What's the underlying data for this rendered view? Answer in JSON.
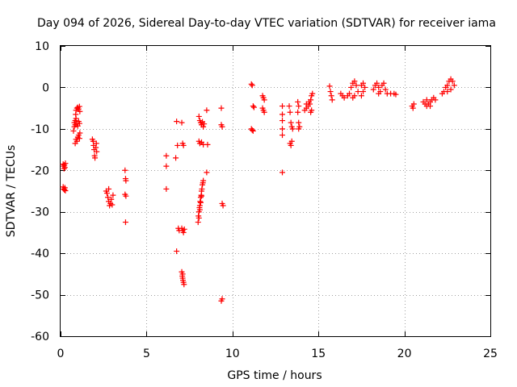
{
  "chart_data": {
    "type": "scatter",
    "title": "Day 094 of 2026, Sidereal Day-to-day VTEC variation (SDTVAR) for receiver iama",
    "xlabel": "GPS time / hours",
    "ylabel": "SDTVAR / TECUs",
    "xlim": [
      0,
      25
    ],
    "ylim": [
      -60,
      10
    ],
    "xticks": [
      "0",
      "5",
      "10",
      "15",
      "20",
      "25"
    ],
    "yticks": [
      "10",
      "0",
      "-10",
      "-20",
      "-30",
      "-40",
      "-50",
      "-60"
    ],
    "grid": true,
    "marker": "+",
    "marker_color": "#ff0000",
    "series": [
      {
        "name": "SDTVAR",
        "points": [
          [
            0.15,
            -18.5
          ],
          [
            0.18,
            -19.0
          ],
          [
            0.2,
            -19.6
          ],
          [
            0.22,
            -18.7
          ],
          [
            0.25,
            -19.3
          ],
          [
            0.28,
            -18.3
          ],
          [
            0.15,
            -24.0
          ],
          [
            0.18,
            -24.5
          ],
          [
            0.22,
            -24.7
          ],
          [
            0.25,
            -24.2
          ],
          [
            0.28,
            -24.9
          ],
          [
            0.75,
            -10.5
          ],
          [
            0.8,
            -9.5
          ],
          [
            0.85,
            -8.0
          ],
          [
            0.88,
            -6.5
          ],
          [
            0.9,
            -5.5
          ],
          [
            0.95,
            -5.0
          ],
          [
            1.0,
            -4.8
          ],
          [
            1.05,
            -5.2
          ],
          [
            1.1,
            -4.6
          ],
          [
            1.12,
            -5.8
          ],
          [
            0.8,
            -8.5
          ],
          [
            0.85,
            -9.0
          ],
          [
            0.9,
            -7.5
          ],
          [
            0.95,
            -8.8
          ],
          [
            1.0,
            -9.3
          ],
          [
            1.05,
            -8.2
          ],
          [
            1.1,
            -8.7
          ],
          [
            0.85,
            -13.5
          ],
          [
            0.9,
            -12.5
          ],
          [
            0.95,
            -13.0
          ],
          [
            1.0,
            -12.0
          ],
          [
            1.05,
            -11.5
          ],
          [
            1.1,
            -12.3
          ],
          [
            1.12,
            -11.0
          ],
          [
            1.85,
            -12.5
          ],
          [
            1.9,
            -13.0
          ],
          [
            1.92,
            -14.0
          ],
          [
            1.95,
            -15.0
          ],
          [
            1.98,
            -16.5
          ],
          [
            2.0,
            -17.0
          ],
          [
            2.05,
            -14.5
          ],
          [
            2.08,
            -13.5
          ],
          [
            2.1,
            -15.5
          ],
          [
            2.65,
            -25.0
          ],
          [
            2.7,
            -25.5
          ],
          [
            2.75,
            -26.5
          ],
          [
            2.8,
            -27.5
          ],
          [
            2.85,
            -28.5
          ],
          [
            2.9,
            -28.0
          ],
          [
            2.95,
            -27.0
          ],
          [
            3.0,
            -28.3
          ],
          [
            3.05,
            -26.0
          ],
          [
            2.8,
            -24.5
          ],
          [
            3.75,
            -20.0
          ],
          [
            3.78,
            -22.0
          ],
          [
            3.8,
            -22.5
          ],
          [
            3.75,
            -25.8
          ],
          [
            3.8,
            -26.2
          ],
          [
            3.78,
            -32.5
          ],
          [
            6.15,
            -16.5
          ],
          [
            6.15,
            -19.0
          ],
          [
            6.15,
            -24.5
          ],
          [
            6.75,
            -8.2
          ],
          [
            6.7,
            -17.0
          ],
          [
            6.8,
            -14.0
          ],
          [
            6.85,
            -34.0
          ],
          [
            6.9,
            -34.5
          ],
          [
            6.75,
            -39.5
          ],
          [
            7.05,
            -8.5
          ],
          [
            7.1,
            -13.5
          ],
          [
            7.15,
            -14.0
          ],
          [
            7.05,
            -34.0
          ],
          [
            7.1,
            -34.5
          ],
          [
            7.15,
            -35.0
          ],
          [
            7.2,
            -34.2
          ],
          [
            7.05,
            -44.5
          ],
          [
            7.08,
            -45.5
          ],
          [
            7.1,
            -46.0
          ],
          [
            7.12,
            -46.5
          ],
          [
            7.15,
            -47.0
          ],
          [
            7.18,
            -47.5
          ],
          [
            7.1,
            -45.0
          ],
          [
            8.05,
            -7.0
          ],
          [
            8.1,
            -8.0
          ],
          [
            8.15,
            -8.5
          ],
          [
            8.2,
            -9.0
          ],
          [
            8.25,
            -8.3
          ],
          [
            8.3,
            -9.5
          ],
          [
            8.35,
            -8.8
          ],
          [
            8.05,
            -13.0
          ],
          [
            8.1,
            -13.5
          ],
          [
            8.2,
            -13.2
          ],
          [
            8.3,
            -13.8
          ],
          [
            8.55,
            -13.8
          ],
          [
            8.0,
            -32.5
          ],
          [
            8.02,
            -31.0
          ],
          [
            8.05,
            -30.0
          ],
          [
            8.08,
            -29.0
          ],
          [
            8.1,
            -28.5
          ],
          [
            8.12,
            -27.5
          ],
          [
            8.15,
            -26.5
          ],
          [
            8.18,
            -26.0
          ],
          [
            8.2,
            -25.0
          ],
          [
            8.22,
            -24.5
          ],
          [
            8.25,
            -23.5
          ],
          [
            8.28,
            -23.0
          ],
          [
            8.3,
            -22.5
          ],
          [
            8.05,
            -31.5
          ],
          [
            8.1,
            -29.5
          ],
          [
            8.15,
            -27.8
          ],
          [
            8.2,
            -26.2
          ],
          [
            8.5,
            -5.5
          ],
          [
            8.5,
            -20.5
          ],
          [
            9.35,
            -5.0
          ],
          [
            9.35,
            -9.0
          ],
          [
            9.4,
            -9.5
          ],
          [
            9.4,
            -28.0
          ],
          [
            9.45,
            -28.5
          ],
          [
            9.35,
            -51.5
          ],
          [
            9.4,
            -51.0
          ],
          [
            11.1,
            0.8
          ],
          [
            11.15,
            0.5
          ],
          [
            11.2,
            -4.5
          ],
          [
            11.25,
            -4.8
          ],
          [
            11.1,
            -10.0
          ],
          [
            11.15,
            -10.3
          ],
          [
            11.2,
            -10.5
          ],
          [
            11.75,
            -2.0
          ],
          [
            11.8,
            -2.5
          ],
          [
            11.85,
            -3.0
          ],
          [
            11.8,
            -5.5
          ],
          [
            11.85,
            -6.0
          ],
          [
            11.75,
            -5.0
          ],
          [
            12.9,
            -4.5
          ],
          [
            12.9,
            -6.5
          ],
          [
            12.9,
            -8.0
          ],
          [
            12.9,
            -11.5
          ],
          [
            12.9,
            -20.5
          ],
          [
            12.9,
            -10.0
          ],
          [
            13.3,
            -4.5
          ],
          [
            13.35,
            -6.0
          ],
          [
            13.4,
            -8.5
          ],
          [
            13.45,
            -9.5
          ],
          [
            13.5,
            -10.0
          ],
          [
            13.35,
            -13.5
          ],
          [
            13.4,
            -14.0
          ],
          [
            13.45,
            -13.0
          ],
          [
            13.8,
            -3.5
          ],
          [
            13.85,
            -4.5
          ],
          [
            13.8,
            -6.0
          ],
          [
            13.85,
            -8.5
          ],
          [
            13.9,
            -9.5
          ],
          [
            13.85,
            -10.0
          ],
          [
            14.2,
            -5.5
          ],
          [
            14.3,
            -5.0
          ],
          [
            14.4,
            -4.5
          ],
          [
            14.5,
            -4.0
          ],
          [
            14.55,
            -3.0
          ],
          [
            14.6,
            -2.0
          ],
          [
            14.65,
            -1.5
          ],
          [
            14.3,
            -4.0
          ],
          [
            14.45,
            -3.5
          ],
          [
            14.6,
            -5.5
          ],
          [
            14.55,
            -6.0
          ],
          [
            15.65,
            0.3
          ],
          [
            15.7,
            -1.0
          ],
          [
            15.75,
            -2.0
          ],
          [
            15.8,
            -3.0
          ],
          [
            16.3,
            -1.5
          ],
          [
            16.4,
            -2.0
          ],
          [
            16.5,
            -2.5
          ],
          [
            16.7,
            -2.0
          ],
          [
            16.8,
            -1.5
          ],
          [
            16.9,
            0.0
          ],
          [
            17.0,
            1.0
          ],
          [
            17.1,
            1.5
          ],
          [
            17.2,
            0.5
          ],
          [
            17.3,
            -1.0
          ],
          [
            17.1,
            -2.0
          ],
          [
            17.0,
            -2.5
          ],
          [
            17.5,
            0.5
          ],
          [
            17.6,
            1.0
          ],
          [
            17.7,
            0.0
          ],
          [
            17.6,
            -1.0
          ],
          [
            17.5,
            -2.0
          ],
          [
            18.2,
            -0.5
          ],
          [
            18.3,
            0.5
          ],
          [
            18.4,
            1.0
          ],
          [
            18.5,
            0.0
          ],
          [
            18.6,
            -1.0
          ],
          [
            18.7,
            0.5
          ],
          [
            18.8,
            1.0
          ],
          [
            18.9,
            -0.5
          ],
          [
            19.0,
            -1.5
          ],
          [
            18.5,
            -1.5
          ],
          [
            19.2,
            -1.5
          ],
          [
            19.4,
            -1.5
          ],
          [
            19.5,
            -1.7
          ],
          [
            20.45,
            -4.5
          ],
          [
            20.5,
            -5.0
          ],
          [
            20.55,
            -4.0
          ],
          [
            21.1,
            -3.5
          ],
          [
            21.2,
            -4.0
          ],
          [
            21.3,
            -4.5
          ],
          [
            21.4,
            -4.0
          ],
          [
            21.5,
            -3.5
          ],
          [
            21.6,
            -3.0
          ],
          [
            21.7,
            -2.5
          ],
          [
            21.8,
            -3.0
          ],
          [
            21.3,
            -3.0
          ],
          [
            21.5,
            -4.5
          ],
          [
            22.2,
            -1.5
          ],
          [
            22.3,
            -1.0
          ],
          [
            22.4,
            0.0
          ],
          [
            22.5,
            0.5
          ],
          [
            22.6,
            1.5
          ],
          [
            22.7,
            2.0
          ],
          [
            22.8,
            1.5
          ],
          [
            22.9,
            0.5
          ],
          [
            22.5,
            -1.0
          ],
          [
            22.7,
            -0.5
          ]
        ]
      }
    ]
  }
}
